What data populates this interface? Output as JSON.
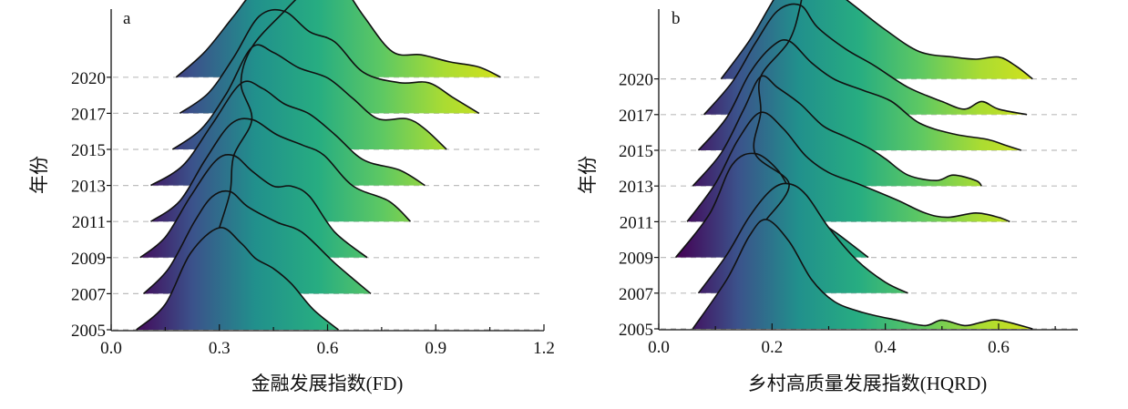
{
  "colors": {
    "viridis": [
      "#440154",
      "#3b528b",
      "#21908c",
      "#27ad81",
      "#5dc863",
      "#aadc32",
      "#d8e219"
    ]
  },
  "chart_data": [
    {
      "type": "ridgeline",
      "panel_label": "a",
      "xlabel": "金融发展指数(FD)",
      "ylabel": "年份",
      "xlim": [
        0,
        1.2
      ],
      "xticks": [
        "0.0",
        "0.3",
        "0.6",
        "0.9",
        "1.2"
      ],
      "xtick_values": [
        0.0,
        0.3,
        0.6,
        0.9,
        1.2
      ],
      "minor_xticks": [
        0.15,
        0.45,
        0.75,
        1.05
      ],
      "year_labels": [
        "2005",
        "2007",
        "2009",
        "2011",
        "2013",
        "2015",
        "2017",
        "2020"
      ],
      "series": [
        {
          "year": "2005",
          "x": [
            0.07,
            0.15,
            0.22,
            0.3,
            0.36,
            0.4,
            0.45,
            0.5,
            0.56,
            0.63
          ],
          "density": [
            0,
            0.25,
            0.75,
            1.0,
            0.85,
            0.7,
            0.6,
            0.45,
            0.2,
            0
          ]
        },
        {
          "year": "2007",
          "x": [
            0.09,
            0.16,
            0.23,
            0.28,
            0.33,
            0.38,
            0.46,
            0.53,
            0.62,
            0.72
          ],
          "density": [
            0,
            0.25,
            0.7,
            0.95,
            1.0,
            0.85,
            0.7,
            0.6,
            0.3,
            0
          ]
        },
        {
          "year": "2009",
          "x": [
            0.08,
            0.15,
            0.22,
            0.29,
            0.34,
            0.39,
            0.45,
            0.5,
            0.55,
            0.62,
            0.71
          ],
          "density": [
            0,
            0.2,
            0.6,
            0.95,
            1.0,
            0.85,
            0.7,
            0.7,
            0.6,
            0.25,
            0
          ]
        },
        {
          "year": "2011",
          "x": [
            0.11,
            0.19,
            0.26,
            0.33,
            0.39,
            0.46,
            0.53,
            0.59,
            0.67,
            0.77,
            0.83
          ],
          "density": [
            0,
            0.2,
            0.6,
            0.95,
            1.0,
            0.85,
            0.75,
            0.65,
            0.35,
            0.2,
            0
          ]
        },
        {
          "year": "2013",
          "x": [
            0.11,
            0.2,
            0.28,
            0.36,
            0.42,
            0.48,
            0.55,
            0.62,
            0.7,
            0.8,
            0.87
          ],
          "density": [
            0,
            0.2,
            0.6,
            1.0,
            0.95,
            0.8,
            0.7,
            0.5,
            0.25,
            0.15,
            0
          ]
        },
        {
          "year": "2015",
          "x": [
            0.17,
            0.25,
            0.32,
            0.39,
            0.45,
            0.52,
            0.6,
            0.67,
            0.74,
            0.82,
            0.87,
            0.93
          ],
          "density": [
            0,
            0.2,
            0.55,
            1.0,
            0.95,
            0.8,
            0.7,
            0.5,
            0.3,
            0.3,
            0.2,
            0
          ]
        },
        {
          "year": "2017",
          "x": [
            0.19,
            0.27,
            0.34,
            0.41,
            0.48,
            0.55,
            0.62,
            0.7,
            0.8,
            0.88,
            0.95,
            1.02
          ],
          "density": [
            0,
            0.2,
            0.55,
            0.95,
            1.0,
            0.8,
            0.7,
            0.4,
            0.3,
            0.3,
            0.15,
            0
          ]
        },
        {
          "year": "2020",
          "x": [
            0.18,
            0.26,
            0.34,
            0.4,
            0.46,
            0.52,
            0.58,
            0.64,
            0.7,
            0.78,
            0.86,
            0.94,
            1.02,
            1.08
          ],
          "density": [
            0,
            0.25,
            0.6,
            0.85,
            0.85,
            0.9,
            1.0,
            0.9,
            0.6,
            0.25,
            0.22,
            0.15,
            0.1,
            0
          ]
        }
      ]
    },
    {
      "type": "ridgeline",
      "panel_label": "b",
      "xlabel": "乡村高质量发展指数(HQRD)",
      "ylabel": "年份",
      "xlim": [
        0.0,
        0.74
      ],
      "xticks": [
        "0.0",
        "0.2",
        "0.4",
        "0.6"
      ],
      "xtick_values": [
        0.0,
        0.2,
        0.4,
        0.6
      ],
      "minor_xticks": [
        0.1,
        0.3,
        0.5,
        0.7
      ],
      "year_labels": [
        "2005",
        "2007",
        "2009",
        "2011",
        "2013",
        "2015",
        "2017",
        "2020"
      ],
      "series": [
        {
          "year": "2005",
          "x": [
            0.06,
            0.12,
            0.16,
            0.19,
            0.23,
            0.27,
            0.31,
            0.36,
            0.42,
            0.47,
            0.5,
            0.54,
            0.57,
            0.6,
            0.66
          ],
          "density": [
            0,
            0.45,
            0.85,
            1.0,
            0.8,
            0.45,
            0.25,
            0.15,
            0.08,
            0.03,
            0.08,
            0.03,
            0.06,
            0.08,
            0
          ]
        },
        {
          "year": "2007",
          "x": [
            0.07,
            0.12,
            0.16,
            0.2,
            0.23,
            0.26,
            0.3,
            0.35,
            0.4,
            0.44
          ],
          "density": [
            0,
            0.35,
            0.7,
            0.95,
            1.0,
            0.9,
            0.6,
            0.3,
            0.1,
            0
          ]
        },
        {
          "year": "2009",
          "x": [
            0.03,
            0.09,
            0.13,
            0.17,
            0.21,
            0.24,
            0.28,
            0.32,
            0.37
          ],
          "density": [
            0,
            0.4,
            0.85,
            0.95,
            0.8,
            0.55,
            0.35,
            0.2,
            0
          ]
        },
        {
          "year": "2011",
          "x": [
            0.05,
            0.1,
            0.14,
            0.18,
            0.22,
            0.26,
            0.3,
            0.35,
            0.42,
            0.47,
            0.51,
            0.56,
            0.6,
            0.62
          ],
          "density": [
            0,
            0.35,
            0.75,
            1.0,
            0.85,
            0.6,
            0.45,
            0.35,
            0.2,
            0.08,
            0.04,
            0.08,
            0.04,
            0
          ]
        },
        {
          "year": "2013",
          "x": [
            0.06,
            0.11,
            0.15,
            0.18,
            0.21,
            0.25,
            0.29,
            0.33,
            0.37,
            0.4,
            0.44,
            0.49,
            0.52,
            0.56,
            0.57
          ],
          "density": [
            0,
            0.3,
            0.7,
            1.0,
            0.9,
            0.75,
            0.55,
            0.45,
            0.35,
            0.25,
            0.1,
            0.05,
            0.1,
            0.05,
            0
          ]
        },
        {
          "year": "2015",
          "x": [
            0.07,
            0.12,
            0.16,
            0.2,
            0.23,
            0.27,
            0.31,
            0.36,
            0.41,
            0.46,
            0.52,
            0.58,
            0.61,
            0.64
          ],
          "density": [
            0,
            0.3,
            0.7,
            0.95,
            1.0,
            0.8,
            0.65,
            0.55,
            0.45,
            0.25,
            0.15,
            0.1,
            0.05,
            0
          ]
        },
        {
          "year": "2017",
          "x": [
            0.08,
            0.13,
            0.17,
            0.21,
            0.25,
            0.28,
            0.33,
            0.38,
            0.44,
            0.5,
            0.54,
            0.57,
            0.6,
            0.65
          ],
          "density": [
            0,
            0.3,
            0.65,
            0.95,
            1.0,
            0.8,
            0.6,
            0.45,
            0.25,
            0.12,
            0.05,
            0.12,
            0.05,
            0
          ]
        },
        {
          "year": "2020",
          "x": [
            0.11,
            0.16,
            0.2,
            0.23,
            0.26,
            0.3,
            0.35,
            0.4,
            0.46,
            0.52,
            0.56,
            0.6,
            0.63,
            0.66
          ],
          "density": [
            0,
            0.35,
            0.7,
            0.95,
            1.0,
            0.85,
            0.65,
            0.45,
            0.25,
            0.2,
            0.18,
            0.2,
            0.12,
            0
          ]
        }
      ]
    }
  ]
}
